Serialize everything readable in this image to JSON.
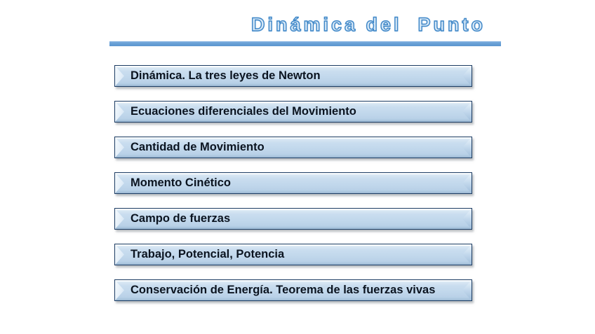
{
  "slide": {
    "title": "Dinámica del  Punto",
    "menu_items": [
      "Dinámica. La tres leyes de Newton",
      "Ecuaciones diferenciales del Movimiento",
      "Cantidad de Movimiento",
      "Momento Cinético",
      "Campo de fuerzas",
      "Trabajo, Potencial, Potencia",
      "Conservación de Energía. Teorema de las fuerzas vivas"
    ],
    "colors": {
      "title_outline": "#3e86c7",
      "title_fill": "#d6e8f7",
      "underline": "#649dd4",
      "bar_fill": "#c2d8ec",
      "bar_border": "#1c3c63",
      "bar_text": "#0b1420",
      "background": "#ffffff"
    }
  }
}
